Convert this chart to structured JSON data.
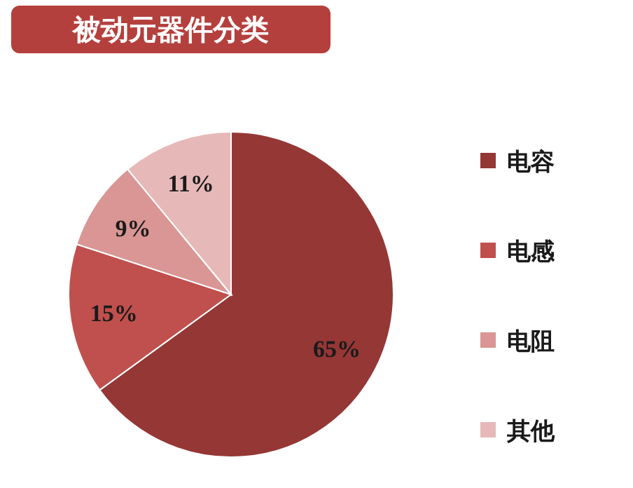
{
  "chart_data": {
    "type": "pie",
    "title": "被动元器件分类",
    "categories": [
      "电容",
      "电感",
      "电阻",
      "其他"
    ],
    "values": [
      65,
      15,
      9,
      11
    ],
    "colors": [
      "#953735",
      "#c0504d",
      "#d99694",
      "#e6b9b8"
    ],
    "value_labels": [
      "65%",
      "15%",
      "9%",
      "11%"
    ],
    "legend": "right"
  }
}
